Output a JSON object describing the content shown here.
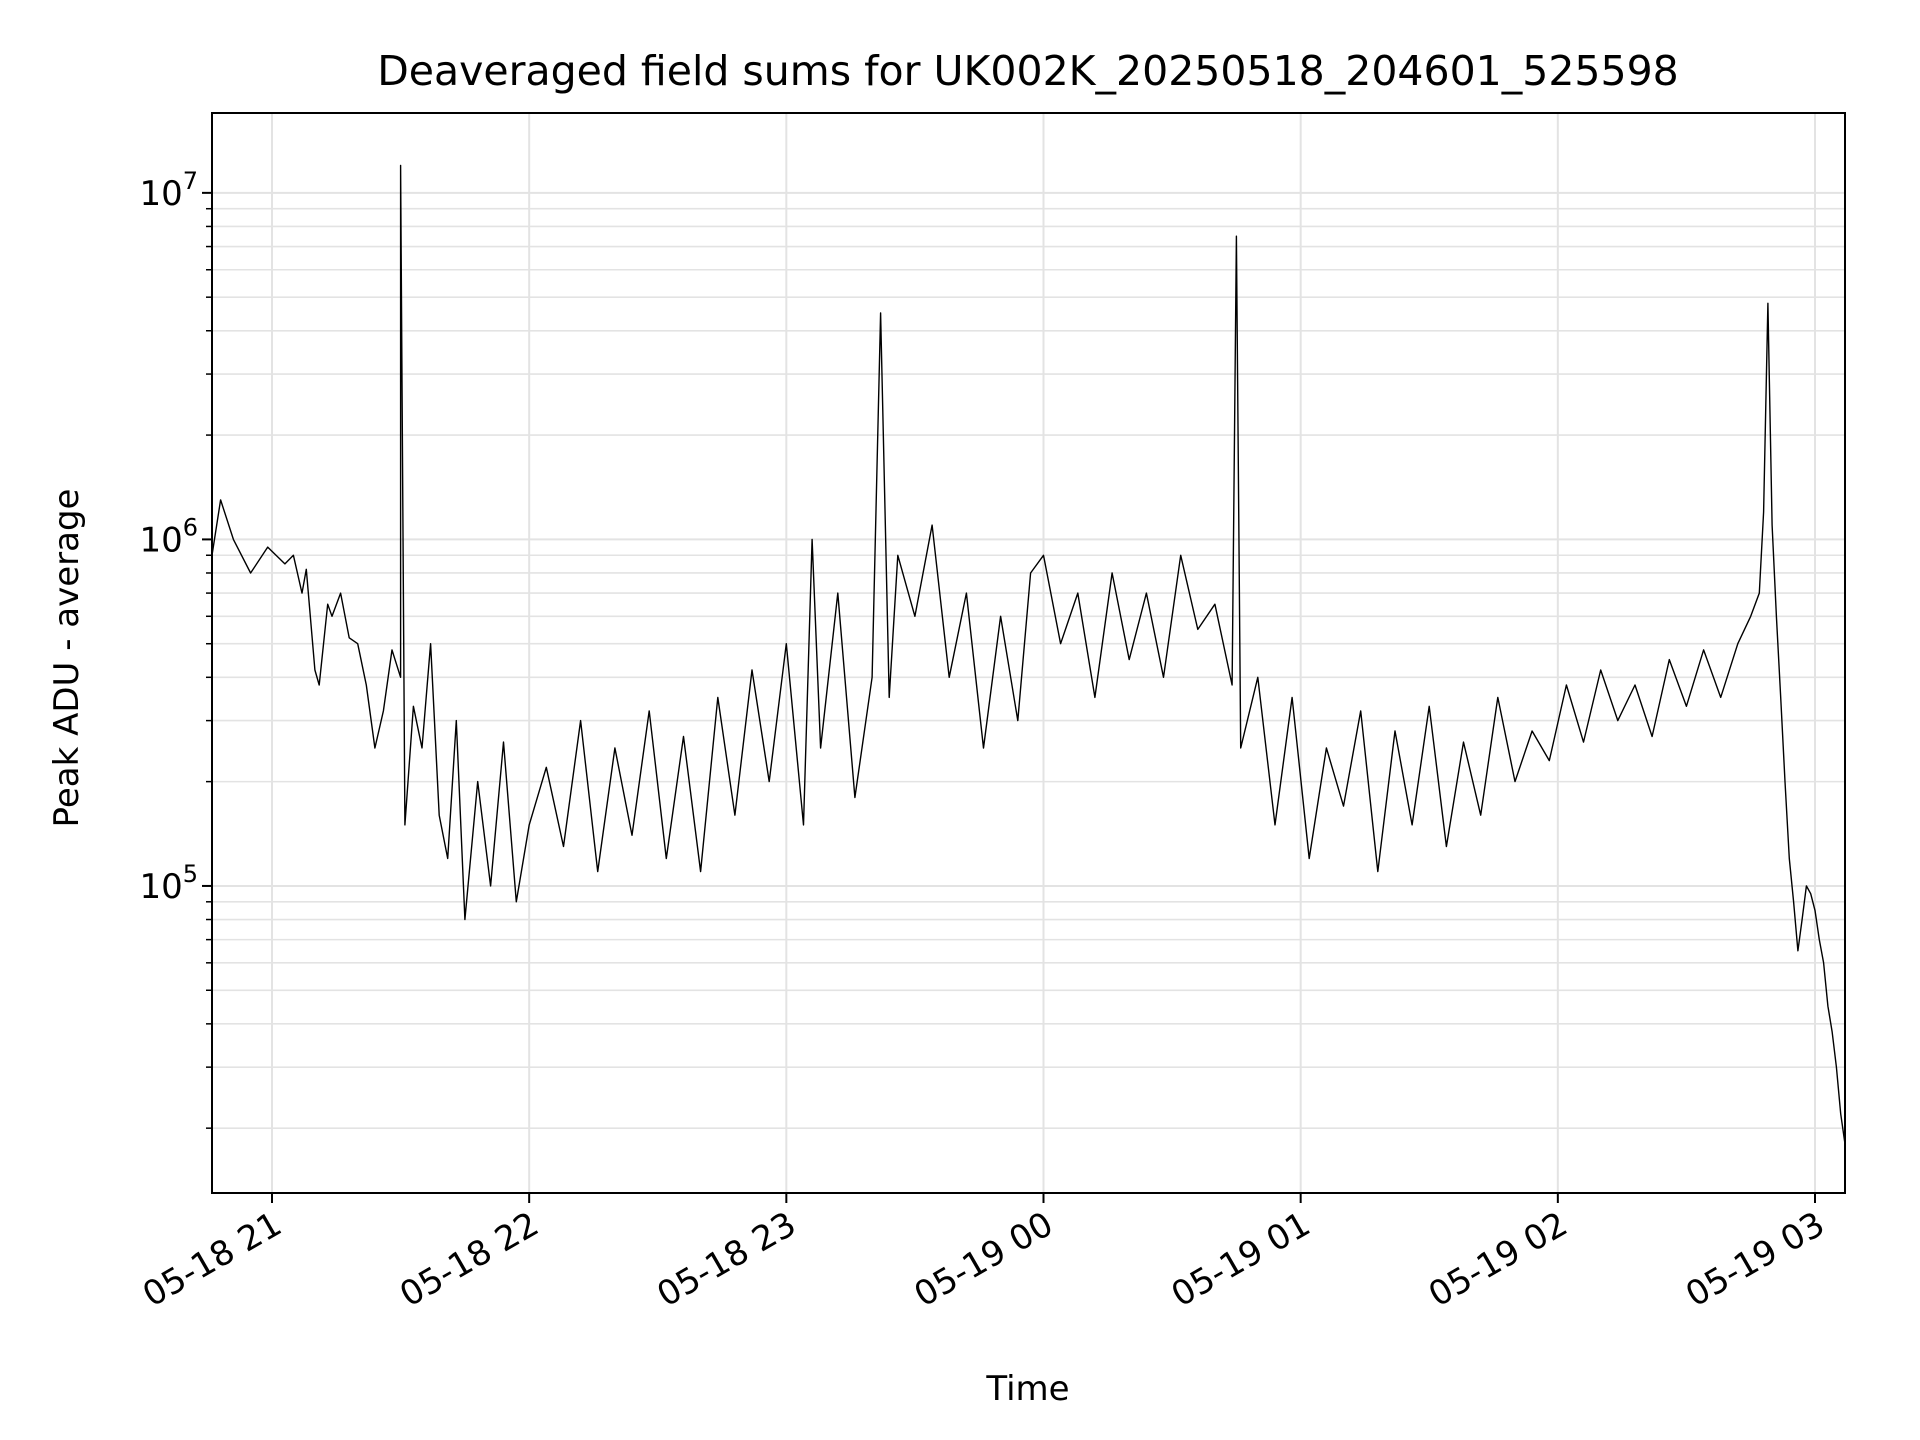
{
  "chart_data": {
    "type": "line",
    "title": "Deaveraged field sums for UK002K_20250518_204601_525598",
    "xlabel": "Time",
    "ylabel": "Peak ADU - average",
    "yscale": "log",
    "ylim": [
      13000,
      17000000
    ],
    "xlim": [
      "2025-05-18 20:46",
      "2025-05-19 03:07"
    ],
    "grid": true,
    "line_color": "#000000",
    "x_ticks": [
      {
        "value": "2025-05-18 21:00",
        "label": "05-18 21"
      },
      {
        "value": "2025-05-18 22:00",
        "label": "05-18 22"
      },
      {
        "value": "2025-05-18 23:00",
        "label": "05-18 23"
      },
      {
        "value": "2025-05-19 00:00",
        "label": "05-19 00"
      },
      {
        "value": "2025-05-19 01:00",
        "label": "05-19 01"
      },
      {
        "value": "2025-05-19 02:00",
        "label": "05-19 02"
      },
      {
        "value": "2025-05-19 03:00",
        "label": "05-19 03"
      }
    ],
    "y_ticks": [
      {
        "value": 100000,
        "base": "10",
        "exp": "5"
      },
      {
        "value": 1000000,
        "base": "10",
        "exp": "6"
      },
      {
        "value": 10000000,
        "base": "10",
        "exp": "7"
      }
    ],
    "series": [
      {
        "x": [
          "2025-05-18 20:46",
          "2025-05-18 20:48",
          "2025-05-18 20:51",
          "2025-05-18 20:55",
          "2025-05-18 20:59",
          "2025-05-18 21:03",
          "2025-05-18 21:05",
          "2025-05-18 21:07",
          "2025-05-18 21:08",
          "2025-05-18 21:10",
          "2025-05-18 21:11",
          "2025-05-18 21:13",
          "2025-05-18 21:14",
          "2025-05-18 21:16",
          "2025-05-18 21:18",
          "2025-05-18 21:20",
          "2025-05-18 21:22",
          "2025-05-18 21:24",
          "2025-05-18 21:26",
          "2025-05-18 21:28",
          "2025-05-18 21:30",
          "2025-05-18 21:30",
          "2025-05-18 21:31",
          "2025-05-18 21:33",
          "2025-05-18 21:35",
          "2025-05-18 21:37",
          "2025-05-18 21:39",
          "2025-05-18 21:41",
          "2025-05-18 21:43",
          "2025-05-18 21:45",
          "2025-05-18 21:48",
          "2025-05-18 21:51",
          "2025-05-18 21:54",
          "2025-05-18 21:57",
          "2025-05-18 22:00",
          "2025-05-18 22:04",
          "2025-05-18 22:08",
          "2025-05-18 22:12",
          "2025-05-18 22:16",
          "2025-05-18 22:20",
          "2025-05-18 22:24",
          "2025-05-18 22:28",
          "2025-05-18 22:32",
          "2025-05-18 22:36",
          "2025-05-18 22:40",
          "2025-05-18 22:44",
          "2025-05-18 22:48",
          "2025-05-18 22:52",
          "2025-05-18 22:56",
          "2025-05-18 23:00",
          "2025-05-18 23:04",
          "2025-05-18 23:06",
          "2025-05-18 23:08",
          "2025-05-18 23:12",
          "2025-05-18 23:16",
          "2025-05-18 23:20",
          "2025-05-18 23:22",
          "2025-05-18 23:24",
          "2025-05-18 23:26",
          "2025-05-18 23:30",
          "2025-05-18 23:34",
          "2025-05-18 23:38",
          "2025-05-18 23:42",
          "2025-05-18 23:46",
          "2025-05-18 23:50",
          "2025-05-18 23:54",
          "2025-05-18 23:57",
          "2025-05-19 00:00",
          "2025-05-19 00:04",
          "2025-05-19 00:08",
          "2025-05-19 00:12",
          "2025-05-19 00:16",
          "2025-05-19 00:20",
          "2025-05-19 00:24",
          "2025-05-19 00:28",
          "2025-05-19 00:32",
          "2025-05-19 00:36",
          "2025-05-19 00:40",
          "2025-05-19 00:44",
          "2025-05-19 00:45",
          "2025-05-19 00:46",
          "2025-05-19 00:50",
          "2025-05-19 00:54",
          "2025-05-19 00:58",
          "2025-05-19 01:02",
          "2025-05-19 01:06",
          "2025-05-19 01:10",
          "2025-05-19 01:14",
          "2025-05-19 01:18",
          "2025-05-19 01:22",
          "2025-05-19 01:26",
          "2025-05-19 01:30",
          "2025-05-19 01:34",
          "2025-05-19 01:38",
          "2025-05-19 01:42",
          "2025-05-19 01:46",
          "2025-05-19 01:50",
          "2025-05-19 01:54",
          "2025-05-19 01:58",
          "2025-05-19 02:02",
          "2025-05-19 02:06",
          "2025-05-19 02:10",
          "2025-05-19 02:14",
          "2025-05-19 02:18",
          "2025-05-19 02:22",
          "2025-05-19 02:26",
          "2025-05-19 02:30",
          "2025-05-19 02:34",
          "2025-05-19 02:38",
          "2025-05-19 02:42",
          "2025-05-19 02:45",
          "2025-05-19 02:47",
          "2025-05-19 02:48",
          "2025-05-19 02:49",
          "2025-05-19 02:50",
          "2025-05-19 02:51",
          "2025-05-19 02:52",
          "2025-05-19 02:53",
          "2025-05-19 02:54",
          "2025-05-19 02:55",
          "2025-05-19 02:56",
          "2025-05-19 02:57",
          "2025-05-19 02:58",
          "2025-05-19 02:59",
          "2025-05-19 03:00",
          "2025-05-19 03:01",
          "2025-05-19 03:02",
          "2025-05-19 03:03",
          "2025-05-19 03:04",
          "2025-05-19 03:05",
          "2025-05-19 03:06",
          "2025-05-19 03:07"
        ],
        "y": [
          900000,
          1300000,
          1000000,
          800000,
          950000,
          850000,
          900000,
          700000,
          820000,
          420000,
          380000,
          650000,
          600000,
          700000,
          520000,
          500000,
          380000,
          250000,
          320000,
          480000,
          400000,
          12000000,
          150000,
          330000,
          250000,
          500000,
          160000,
          120000,
          300000,
          80000,
          200000,
          100000,
          260000,
          90000,
          150000,
          220000,
          130000,
          300000,
          110000,
          250000,
          140000,
          320000,
          120000,
          270000,
          110000,
          350000,
          160000,
          420000,
          200000,
          500000,
          150000,
          1000000,
          250000,
          700000,
          180000,
          400000,
          4500000,
          350000,
          900000,
          600000,
          1100000,
          400000,
          700000,
          250000,
          600000,
          300000,
          800000,
          900000,
          500000,
          700000,
          350000,
          800000,
          450000,
          700000,
          400000,
          900000,
          550000,
          650000,
          380000,
          7500000,
          250000,
          400000,
          150000,
          350000,
          120000,
          250000,
          170000,
          320000,
          110000,
          280000,
          150000,
          330000,
          130000,
          260000,
          160000,
          350000,
          200000,
          280000,
          230000,
          380000,
          260000,
          420000,
          300000,
          380000,
          270000,
          450000,
          330000,
          480000,
          350000,
          500000,
          600000,
          700000,
          1200000,
          4800000,
          1100000,
          600000,
          350000,
          200000,
          120000,
          90000,
          65000,
          80000,
          100000,
          95000,
          85000,
          70000,
          60000,
          45000,
          38000,
          30000,
          22000,
          18000
        ]
      }
    ]
  }
}
